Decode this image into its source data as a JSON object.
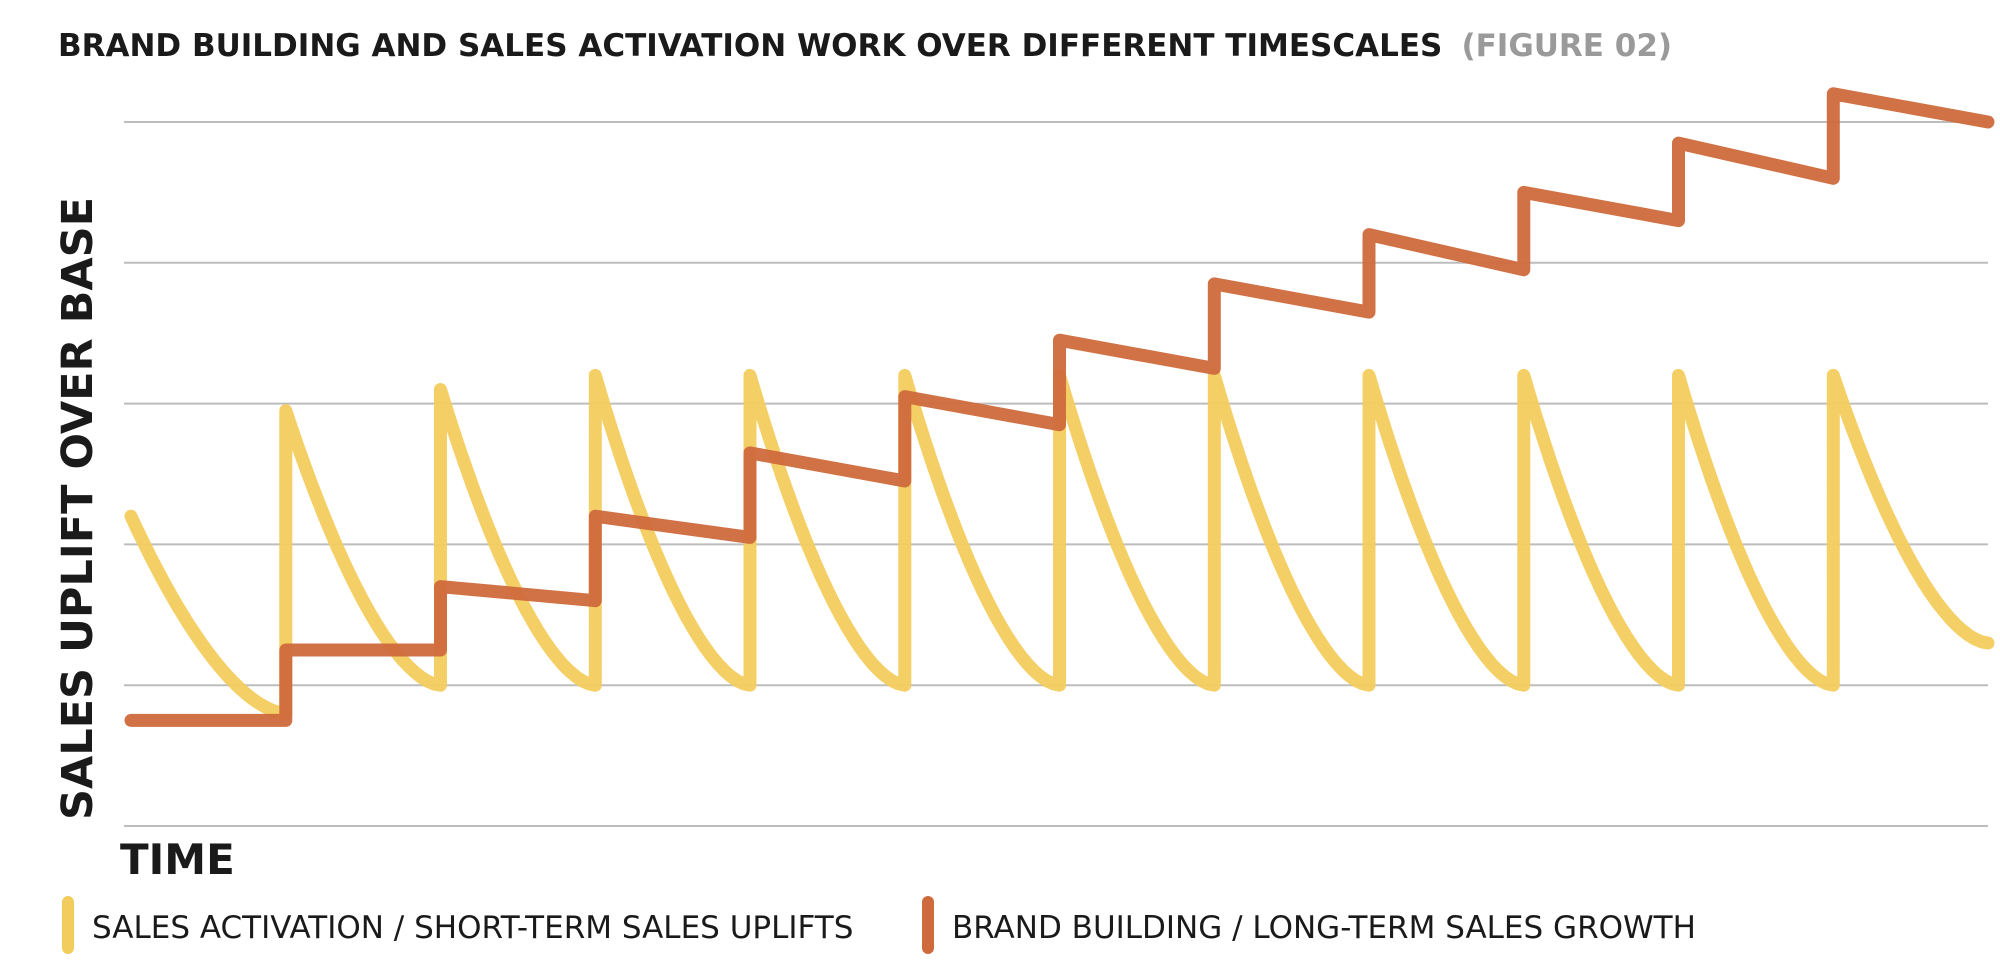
{
  "chart_data": {
    "type": "line",
    "title": "BRAND BUILDING AND SALES ACTIVATION WORK OVER DIFFERENT TIMESCALES",
    "subtitle": "(FIGURE 02)",
    "xlabel": "TIME",
    "ylabel": "SALES UPLIFT OVER BASE",
    "grid": true,
    "ylim": [
      0,
      5
    ],
    "xlim": [
      0,
      12
    ],
    "y_gridlines": [
      0,
      1,
      2,
      3,
      4,
      5
    ],
    "legend_position": "bottom-left",
    "series": [
      {
        "name": "SALES ACTIVATION / SHORT-TERM SALES UPLIFTS",
        "color": "#f3cc5e",
        "shape": "sawtooth-decay",
        "segments": [
          {
            "x_start": 0,
            "x_end": 1,
            "peak": 2.2,
            "trough": 0.8
          },
          {
            "x_start": 1,
            "x_end": 2,
            "peak": 2.95,
            "trough": 1.0
          },
          {
            "x_start": 2,
            "x_end": 3,
            "peak": 3.1,
            "trough": 1.0
          },
          {
            "x_start": 3,
            "x_end": 4,
            "peak": 3.2,
            "trough": 1.0
          },
          {
            "x_start": 4,
            "x_end": 5,
            "peak": 3.2,
            "trough": 1.0
          },
          {
            "x_start": 5,
            "x_end": 6,
            "peak": 3.2,
            "trough": 1.0
          },
          {
            "x_start": 6,
            "x_end": 7,
            "peak": 3.2,
            "trough": 1.0
          },
          {
            "x_start": 7,
            "x_end": 8,
            "peak": 3.2,
            "trough": 1.0
          },
          {
            "x_start": 8,
            "x_end": 9,
            "peak": 3.2,
            "trough": 1.0
          },
          {
            "x_start": 9,
            "x_end": 10,
            "peak": 3.2,
            "trough": 1.0
          },
          {
            "x_start": 10,
            "x_end": 11,
            "peak": 3.2,
            "trough": 1.0
          },
          {
            "x_start": 11,
            "x_end": 12,
            "peak": 3.2,
            "trough": 1.3
          }
        ]
      },
      {
        "name": "BRAND BUILDING / LONG-TERM SALES GROWTH",
        "color": "#cf6a3c",
        "shape": "staircase",
        "segments": [
          {
            "x_start": 0,
            "x_end": 1,
            "y_start": 0.75,
            "y_end": 0.75
          },
          {
            "x_start": 1,
            "x_end": 2,
            "y_start": 1.25,
            "y_end": 1.25
          },
          {
            "x_start": 2,
            "x_end": 3,
            "y_start": 1.7,
            "y_end": 1.6
          },
          {
            "x_start": 3,
            "x_end": 4,
            "y_start": 2.2,
            "y_end": 2.05
          },
          {
            "x_start": 4,
            "x_end": 5,
            "y_start": 2.65,
            "y_end": 2.45
          },
          {
            "x_start": 5,
            "x_end": 6,
            "y_start": 3.05,
            "y_end": 2.85
          },
          {
            "x_start": 6,
            "x_end": 7,
            "y_start": 3.45,
            "y_end": 3.25
          },
          {
            "x_start": 7,
            "x_end": 8,
            "y_start": 3.85,
            "y_end": 3.65
          },
          {
            "x_start": 8,
            "x_end": 9,
            "y_start": 4.2,
            "y_end": 3.95
          },
          {
            "x_start": 9,
            "x_end": 10,
            "y_start": 4.5,
            "y_end": 4.3
          },
          {
            "x_start": 10,
            "x_end": 11,
            "y_start": 4.85,
            "y_end": 4.6
          },
          {
            "x_start": 11,
            "x_end": 12,
            "y_start": 5.2,
            "y_end": 5.0
          }
        ]
      }
    ]
  }
}
